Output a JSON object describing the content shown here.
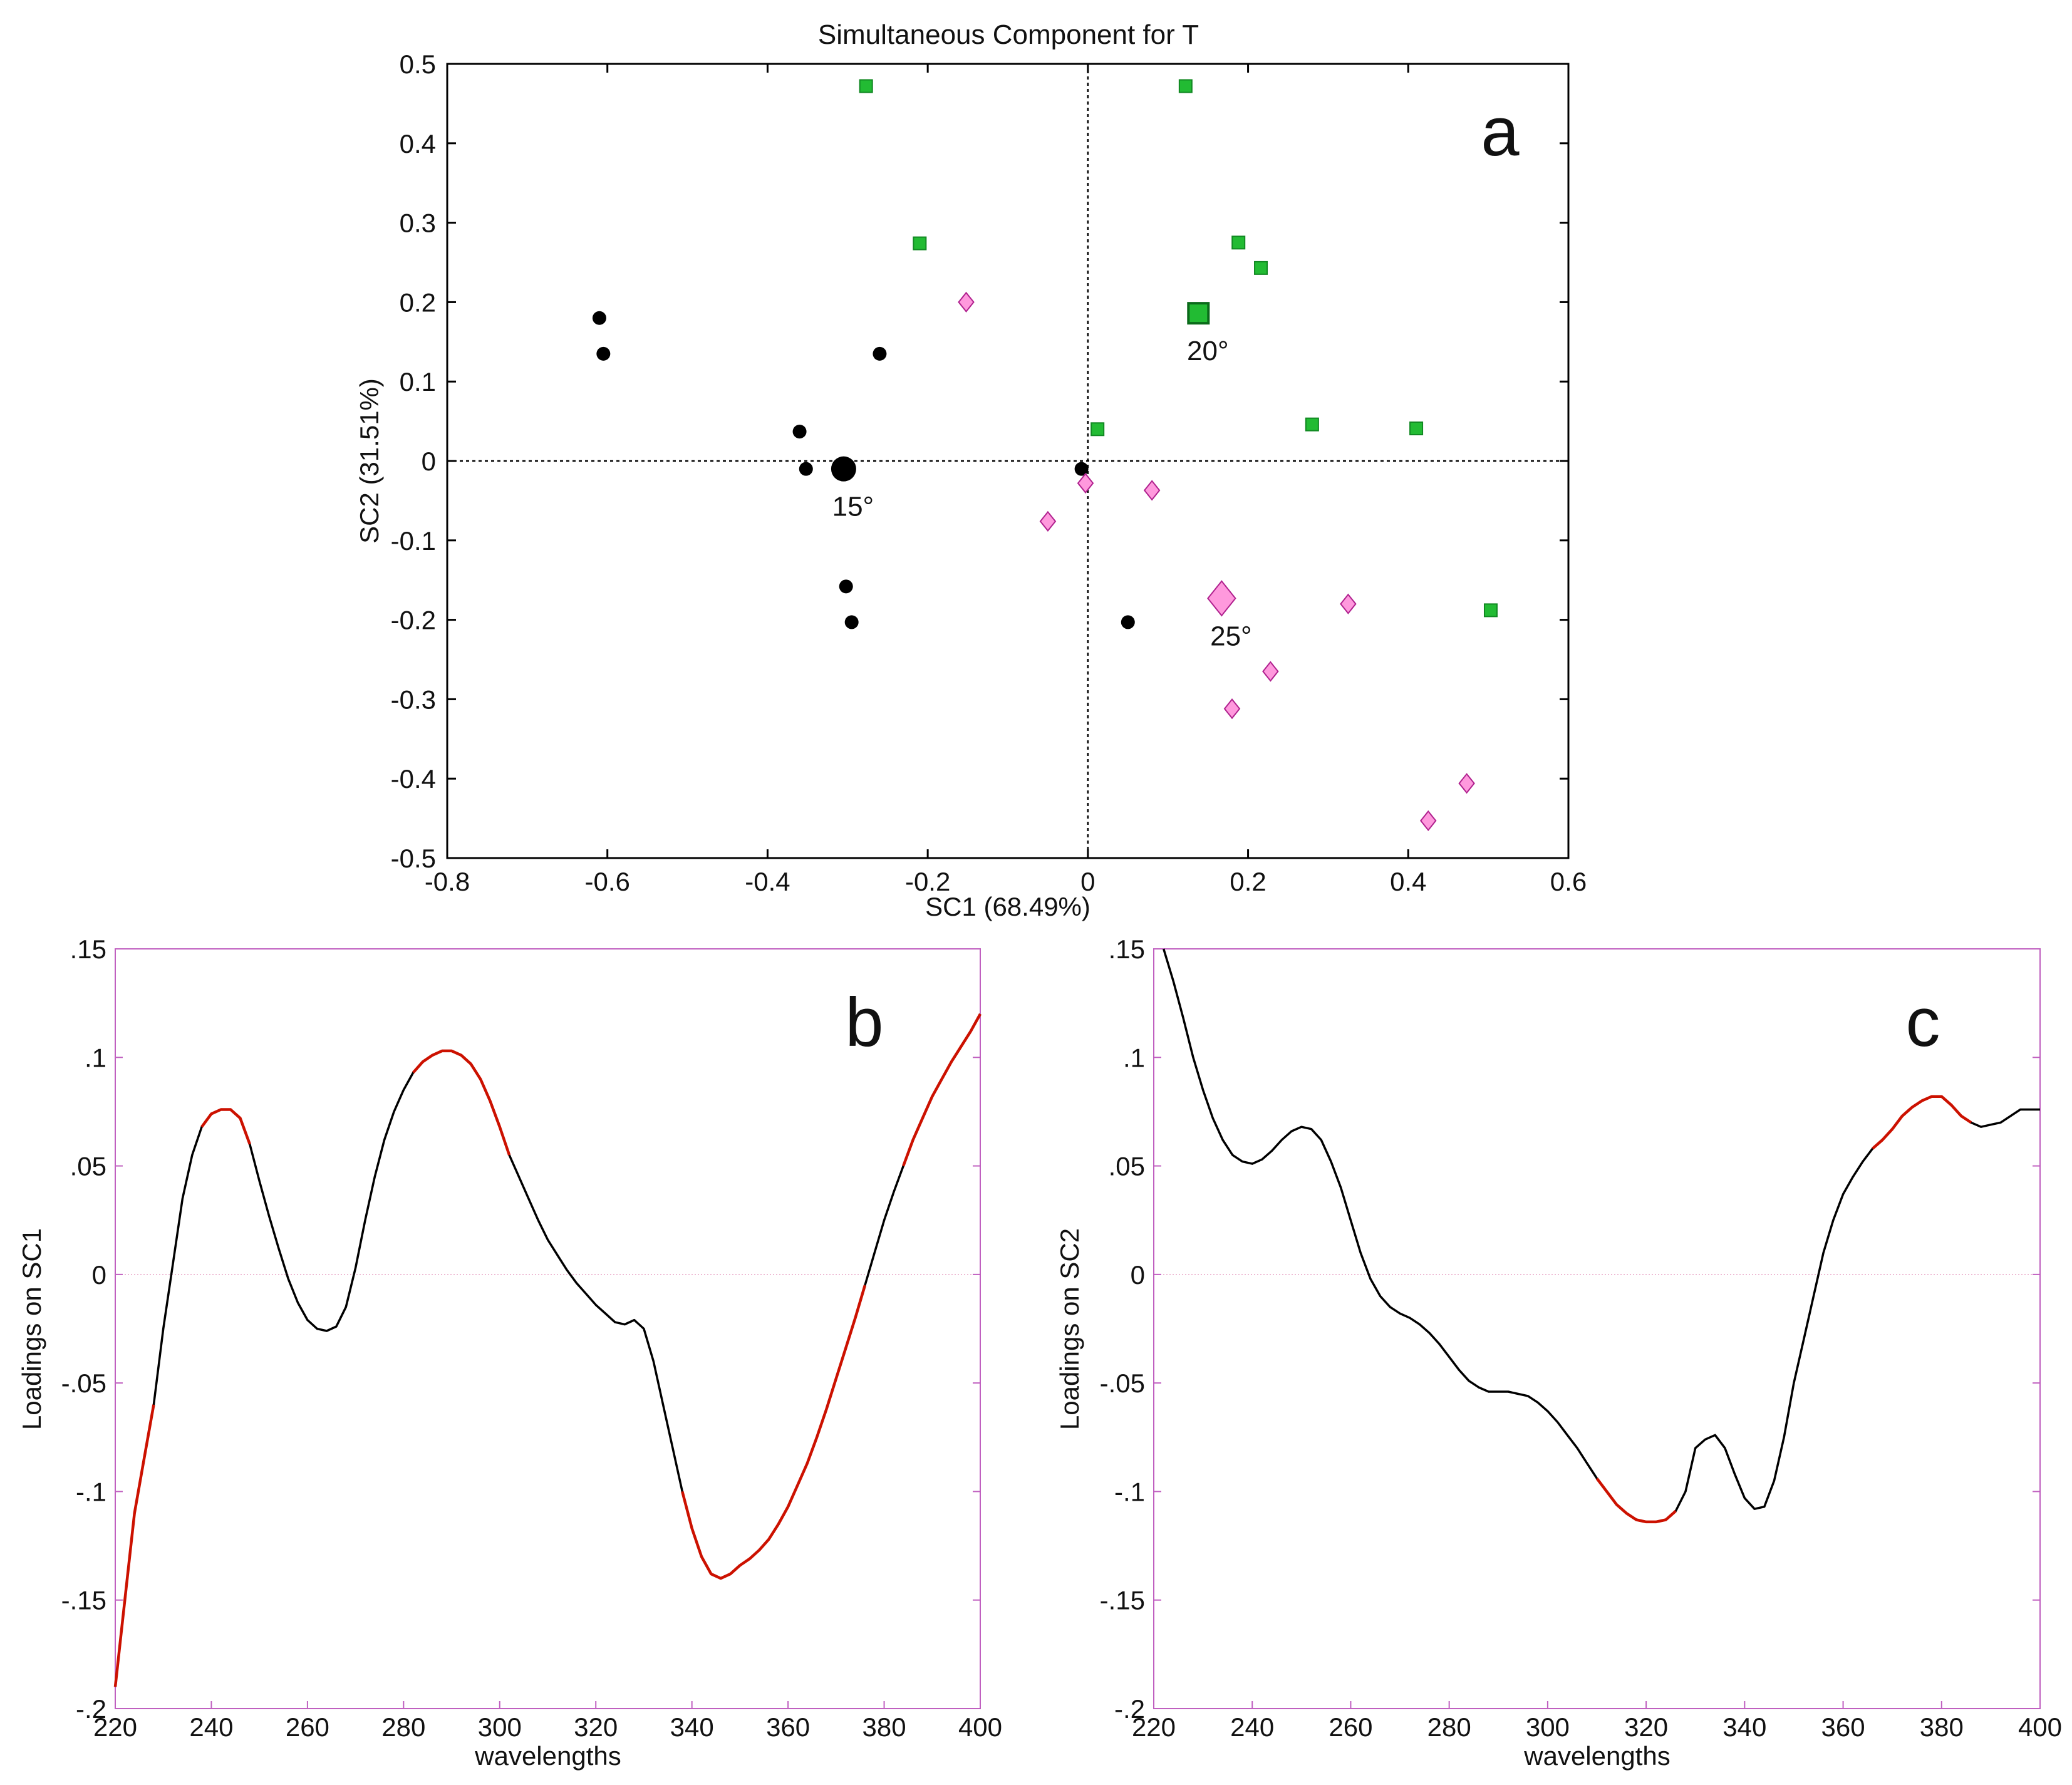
{
  "chart_data": [
    {
      "id": "a",
      "type": "scatter",
      "title": "Simultaneous Component for T",
      "panel_label": "a",
      "xlabel": "SC1 (68.49%)",
      "ylabel": "SC2 (31.51%)",
      "xlim": [
        -0.8,
        0.6
      ],
      "ylim": [
        -0.5,
        0.5
      ],
      "xticks": [
        -0.8,
        -0.6,
        -0.4,
        -0.2,
        0,
        0.2,
        0.4,
        0.6
      ],
      "yticks": [
        -0.5,
        -0.4,
        -0.3,
        -0.2,
        -0.1,
        0,
        0.1,
        0.2,
        0.3,
        0.4,
        0.5
      ],
      "reference_lines": {
        "x": 0,
        "y": 0,
        "style": "dotted"
      },
      "series": [
        {
          "name": "15°",
          "marker": "circle",
          "color": "#000000",
          "points": [
            {
              "x": -0.61,
              "y": 0.18
            },
            {
              "x": -0.605,
              "y": 0.135
            },
            {
              "x": -0.26,
              "y": 0.135
            },
            {
              "x": -0.36,
              "y": 0.037
            },
            {
              "x": -0.352,
              "y": -0.01
            },
            {
              "x": -0.008,
              "y": -0.01
            },
            {
              "x": -0.302,
              "y": -0.158
            },
            {
              "x": -0.295,
              "y": -0.203
            },
            {
              "x": 0.05,
              "y": -0.203
            }
          ],
          "centroid": {
            "x": -0.305,
            "y": -0.01,
            "label": "15°"
          }
        },
        {
          "name": "20°",
          "marker": "square",
          "color": "#22bb33",
          "points": [
            {
              "x": -0.277,
              "y": 0.472
            },
            {
              "x": 0.122,
              "y": 0.472
            },
            {
              "x": -0.21,
              "y": 0.274
            },
            {
              "x": 0.188,
              "y": 0.275
            },
            {
              "x": 0.216,
              "y": 0.243
            },
            {
              "x": 0.012,
              "y": 0.04
            },
            {
              "x": 0.28,
              "y": 0.046
            },
            {
              "x": 0.41,
              "y": 0.041
            },
            {
              "x": 0.503,
              "y": -0.188
            }
          ],
          "centroid": {
            "x": 0.138,
            "y": 0.186,
            "label": "20°"
          }
        },
        {
          "name": "25°",
          "marker": "diamond",
          "color": "#ff99dd",
          "points": [
            {
              "x": -0.152,
              "y": 0.2
            },
            {
              "x": -0.003,
              "y": -0.028
            },
            {
              "x": 0.08,
              "y": -0.037
            },
            {
              "x": -0.05,
              "y": -0.076
            },
            {
              "x": 0.325,
              "y": -0.18
            },
            {
              "x": 0.228,
              "y": -0.265
            },
            {
              "x": 0.18,
              "y": -0.312
            },
            {
              "x": 0.473,
              "y": -0.406
            },
            {
              "x": 0.425,
              "y": -0.453
            }
          ],
          "centroid": {
            "x": 0.167,
            "y": -0.173,
            "label": "25°"
          }
        }
      ]
    },
    {
      "id": "b",
      "type": "line",
      "panel_label": "b",
      "xlabel": "wavelengths",
      "ylabel": "Loadings on SC1",
      "xlim": [
        220,
        400
      ],
      "ylim": [
        -0.2,
        0.15
      ],
      "xticks": [
        220,
        240,
        260,
        280,
        300,
        320,
        340,
        360,
        380,
        400
      ],
      "yticks": [
        -0.2,
        -0.15,
        -0.1,
        -0.05,
        0,
        0.05,
        0.1,
        0.15
      ],
      "series": [
        {
          "name": "Loadings on SC1",
          "color": "#000000",
          "highlight_color": "#cc1100",
          "x": [
            220,
            222,
            224,
            226,
            228,
            230,
            232,
            234,
            236,
            238,
            240,
            242,
            244,
            246,
            248,
            250,
            252,
            254,
            256,
            258,
            260,
            262,
            264,
            266,
            268,
            270,
            272,
            274,
            276,
            278,
            280,
            282,
            284,
            286,
            288,
            290,
            292,
            294,
            296,
            298,
            300,
            302,
            304,
            306,
            308,
            310,
            312,
            314,
            316,
            318,
            320,
            322,
            324,
            326,
            328,
            330,
            332,
            334,
            336,
            338,
            340,
            342,
            344,
            346,
            348,
            350,
            352,
            354,
            356,
            358,
            360,
            362,
            364,
            366,
            368,
            370,
            372,
            374,
            376,
            378,
            380,
            382,
            384,
            386,
            388,
            390,
            392,
            394,
            396,
            398,
            400
          ],
          "y": [
            -0.19,
            -0.15,
            -0.11,
            -0.085,
            -0.06,
            -0.025,
            0.005,
            0.035,
            0.055,
            0.068,
            0.074,
            0.076,
            0.076,
            0.072,
            0.06,
            0.043,
            0.027,
            0.012,
            -0.002,
            -0.013,
            -0.021,
            -0.025,
            -0.026,
            -0.024,
            -0.015,
            0.003,
            0.025,
            0.045,
            0.062,
            0.075,
            0.085,
            0.093,
            0.098,
            0.101,
            0.103,
            0.103,
            0.101,
            0.097,
            0.09,
            0.08,
            0.068,
            0.055,
            0.045,
            0.035,
            0.025,
            0.016,
            0.009,
            0.002,
            -0.004,
            -0.009,
            -0.014,
            -0.018,
            -0.022,
            -0.023,
            -0.021,
            -0.025,
            -0.04,
            -0.06,
            -0.08,
            -0.1,
            -0.117,
            -0.13,
            -0.138,
            -0.14,
            -0.138,
            -0.134,
            -0.131,
            -0.127,
            -0.122,
            -0.115,
            -0.107,
            -0.097,
            -0.087,
            -0.075,
            -0.062,
            -0.048,
            -0.034,
            -0.02,
            -0.005,
            0.01,
            0.025,
            0.038,
            0.05,
            0.062,
            0.072,
            0.082,
            0.09,
            0.098,
            0.105,
            0.112,
            0.12
          ],
          "highlight_ranges": [
            [
              220,
              228
            ],
            [
              238,
              248
            ],
            [
              282,
              302
            ],
            [
              338,
              376
            ],
            [
              384,
              400
            ]
          ]
        }
      ]
    },
    {
      "id": "c",
      "type": "line",
      "panel_label": "c",
      "xlabel": "wavelengths",
      "ylabel": "Loadings on SC2",
      "xlim": [
        220,
        400
      ],
      "ylim": [
        -0.2,
        0.15
      ],
      "xticks": [
        220,
        240,
        260,
        280,
        300,
        320,
        340,
        360,
        380,
        400
      ],
      "yticks": [
        -0.2,
        -0.15,
        -0.1,
        -0.05,
        0,
        0.05,
        0.1,
        0.15
      ],
      "series": [
        {
          "name": "Loadings on SC2",
          "color": "#000000",
          "highlight_color": "#cc1100",
          "x": [
            222,
            224,
            226,
            228,
            230,
            232,
            234,
            236,
            238,
            240,
            242,
            244,
            246,
            248,
            250,
            252,
            254,
            256,
            258,
            260,
            262,
            264,
            266,
            268,
            270,
            272,
            274,
            276,
            278,
            280,
            282,
            284,
            286,
            288,
            290,
            292,
            294,
            296,
            298,
            300,
            302,
            304,
            306,
            308,
            310,
            312,
            314,
            316,
            318,
            320,
            322,
            324,
            326,
            328,
            330,
            332,
            334,
            336,
            338,
            340,
            342,
            344,
            346,
            348,
            350,
            352,
            354,
            356,
            358,
            360,
            362,
            364,
            366,
            368,
            370,
            372,
            374,
            376,
            378,
            380,
            382,
            384,
            386,
            388,
            390,
            392,
            394,
            396,
            398,
            400
          ],
          "y": [
            0.15,
            0.135,
            0.118,
            0.1,
            0.085,
            0.072,
            0.062,
            0.055,
            0.052,
            0.051,
            0.053,
            0.057,
            0.062,
            0.066,
            0.068,
            0.067,
            0.062,
            0.052,
            0.04,
            0.025,
            0.01,
            -0.002,
            -0.01,
            -0.015,
            -0.018,
            -0.02,
            -0.023,
            -0.027,
            -0.032,
            -0.038,
            -0.044,
            -0.049,
            -0.052,
            -0.054,
            -0.054,
            -0.054,
            -0.055,
            -0.056,
            -0.059,
            -0.063,
            -0.068,
            -0.074,
            -0.08,
            -0.087,
            -0.094,
            -0.1,
            -0.106,
            -0.11,
            -0.113,
            -0.114,
            -0.114,
            -0.113,
            -0.109,
            -0.1,
            -0.08,
            -0.076,
            -0.074,
            -0.08,
            -0.092,
            -0.103,
            -0.108,
            -0.107,
            -0.095,
            -0.075,
            -0.05,
            -0.03,
            -0.01,
            0.01,
            0.025,
            0.037,
            0.045,
            0.052,
            0.058,
            0.062,
            0.067,
            0.073,
            0.077,
            0.08,
            0.082,
            0.082,
            0.078,
            0.073,
            0.07,
            0.068,
            0.069,
            0.07,
            0.073,
            0.076,
            0.076,
            0.076
          ],
          "highlight_ranges": [
            [
              310,
              326
            ],
            [
              366,
              386
            ]
          ]
        }
      ]
    }
  ]
}
